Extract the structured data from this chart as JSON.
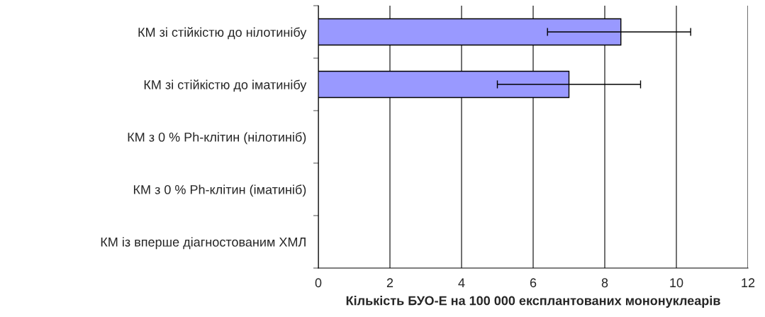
{
  "chart_data": {
    "type": "bar",
    "orientation": "horizontal",
    "categories": [
      "КМ зі стійкістю до нілотинібу",
      "КМ зі стійкістю до іматинібу",
      "КМ з 0 % Ph-клітин (нілотиніб)",
      "КМ з 0 % Ph-клітин (іматиніб)",
      "КМ із вперше діагностованим ХМЛ"
    ],
    "values": [
      8.45,
      7.0,
      0,
      0,
      0
    ],
    "errors": [
      [
        6.4,
        10.4
      ],
      [
        5.0,
        9.0
      ],
      null,
      null,
      null
    ],
    "color": "#9999ff",
    "xlabel": "Кількість БУО-Е на 100 000 експлантованих мононуклеарів",
    "xlim": [
      0,
      12
    ],
    "xticks": [
      0,
      2,
      4,
      6,
      8,
      10,
      12
    ],
    "grid": "x",
    "legend": false
  }
}
